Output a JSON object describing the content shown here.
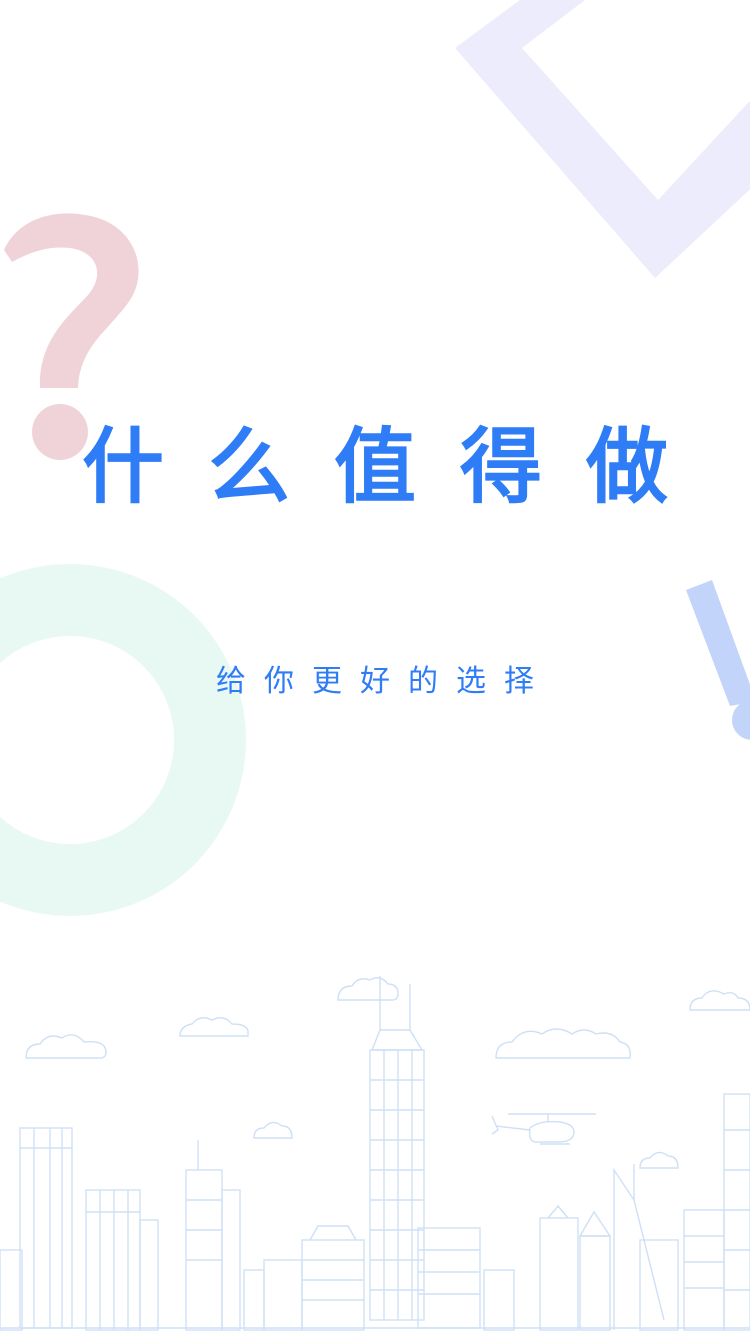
{
  "splash": {
    "title": "什么值得做",
    "subtitle": "给你更好的选择"
  },
  "colors": {
    "accent": "#2e7cf6",
    "question_mark": "#f0d3d9",
    "diamond": "#ececfc",
    "ring": "#e8f9f4",
    "exclamation": "#c3d4fa",
    "skyline_line": "#cfe0f6"
  },
  "icons": {
    "question": "question-mark-icon",
    "diamond": "diamond-outline-icon",
    "ring": "ring-icon",
    "exclamation": "exclamation-mark-icon",
    "helicopter": "helicopter-icon",
    "cloud": "cloud-icon"
  }
}
